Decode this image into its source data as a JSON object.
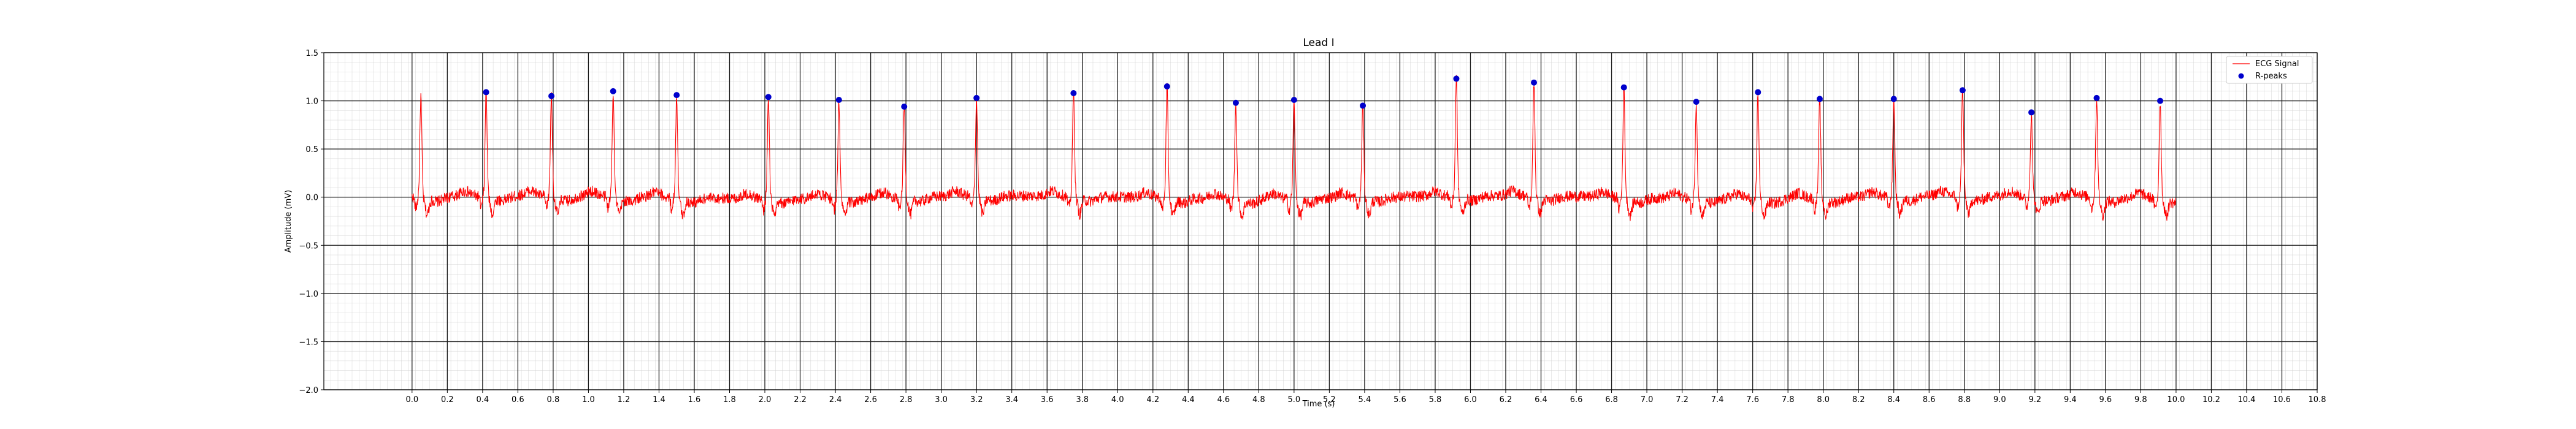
{
  "chart_data": {
    "type": "line",
    "title": "Lead I",
    "xlabel": "Time (s)",
    "ylabel": "Amplitude (mV)",
    "xlim": [
      -0.5,
      10.8
    ],
    "ylim": [
      -2.0,
      1.5
    ],
    "x_ticks": [
      0.0,
      0.2,
      0.4,
      0.6,
      0.8,
      1.0,
      1.2,
      1.4,
      1.6,
      1.8,
      2.0,
      2.2,
      2.4,
      2.6,
      2.8,
      3.0,
      3.2,
      3.4,
      3.6,
      3.8,
      4.0,
      4.2,
      4.4,
      4.6,
      4.8,
      5.0,
      5.2,
      5.4,
      5.6,
      5.8,
      6.0,
      6.2,
      6.4,
      6.6,
      6.8,
      7.0,
      7.2,
      7.4,
      7.6,
      7.8,
      8.0,
      8.2,
      8.4,
      8.6,
      8.8,
      9.0,
      9.2,
      9.4,
      9.6,
      9.8,
      10.0,
      10.2,
      10.4,
      10.6,
      10.8
    ],
    "x_tick_labels": [
      "0.0",
      "0.2",
      "0.4",
      "0.6",
      "0.8",
      "1.0",
      "1.2",
      "1.4",
      "1.6",
      "1.8",
      "2.0",
      "2.2",
      "2.4",
      "2.6",
      "2.8",
      "3.0",
      "3.2",
      "3.4",
      "3.6",
      "3.8",
      "4.0",
      "4.2",
      "4.4",
      "4.6",
      "4.8",
      "5.0",
      "5.2",
      "5.4",
      "5.6",
      "5.8",
      "6.0",
      "6.2",
      "6.4",
      "6.6",
      "6.8",
      "7.0",
      "7.2",
      "7.4",
      "7.6",
      "7.8",
      "8.0",
      "8.2",
      "8.4",
      "8.6",
      "8.8",
      "9.0",
      "9.2",
      "9.4",
      "9.6",
      "9.8",
      "10.0",
      "10.2",
      "10.4",
      "10.6",
      "10.8"
    ],
    "y_ticks": [
      -2.0,
      -1.5,
      -1.0,
      -0.5,
      0.0,
      0.5,
      1.0,
      1.5
    ],
    "y_tick_labels": [
      "−2.0",
      "−1.5",
      "−1.0",
      "−0.5",
      "0.0",
      "0.5",
      "1.0",
      "1.5"
    ],
    "grid": true,
    "legend": {
      "position": "top-right",
      "entries": [
        "ECG Signal",
        "R-peaks"
      ]
    },
    "signal": {
      "name": "ECG Signal",
      "color": "#ff0000",
      "x_start": 0.0,
      "x_end": 10.0,
      "first_beat": 0.05,
      "first_beat_peak": 1.05
    },
    "r_peaks": {
      "name": "R-peaks",
      "color": "#0000cc",
      "x": [
        0.42,
        0.79,
        1.14,
        1.5,
        2.02,
        2.42,
        2.79,
        3.2,
        3.75,
        4.28,
        4.67,
        5.0,
        5.39,
        5.92,
        6.36,
        6.87,
        7.28,
        7.63,
        7.98,
        8.4,
        8.79,
        9.18,
        9.55,
        9.91
      ],
      "y": [
        1.09,
        1.05,
        1.1,
        1.06,
        1.04,
        1.01,
        0.94,
        1.03,
        1.08,
        1.15,
        0.98,
        1.01,
        0.95,
        1.23,
        1.19,
        1.14,
        0.99,
        1.09,
        1.02,
        1.02,
        1.11,
        0.88,
        1.03,
        1.0
      ]
    }
  }
}
